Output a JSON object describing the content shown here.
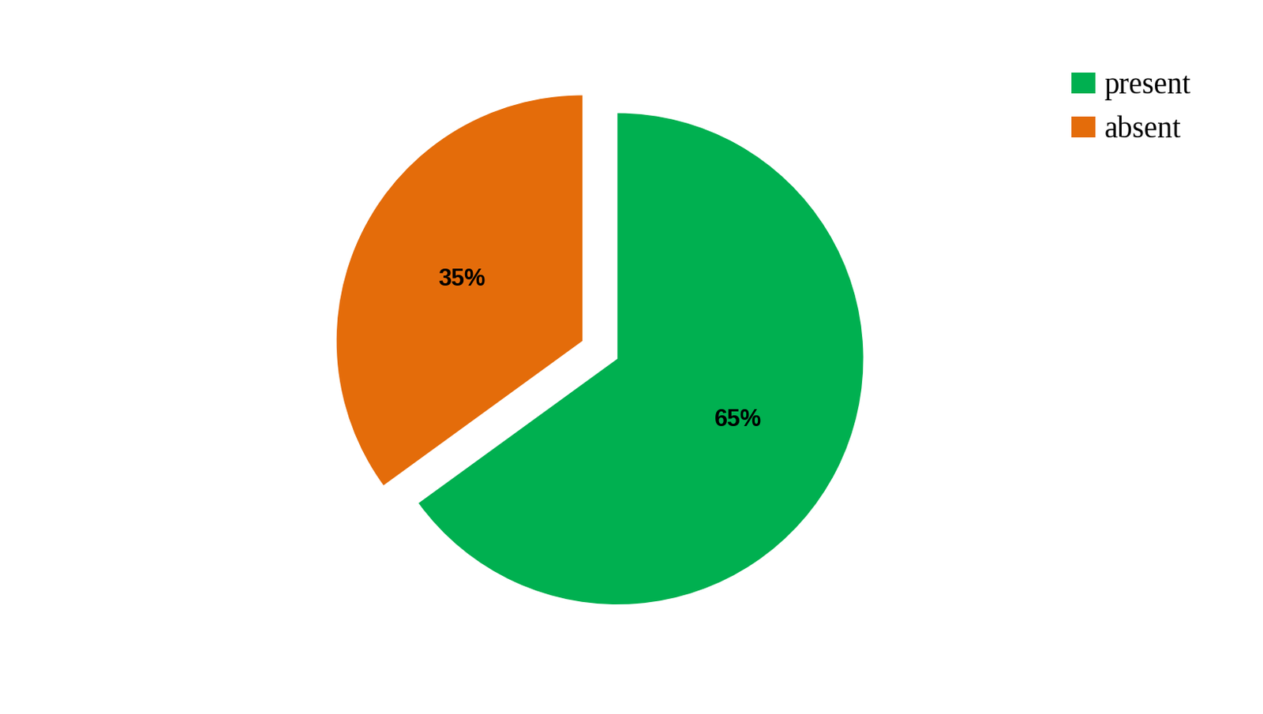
{
  "chart_data": {
    "type": "pie",
    "categories": [
      "present",
      "absent"
    ],
    "values": [
      65,
      35
    ],
    "value_labels": [
      "65%",
      "35%"
    ],
    "colors": [
      "#00b050",
      "#e46c0a"
    ],
    "data_labels": true,
    "legend": "upper right"
  }
}
